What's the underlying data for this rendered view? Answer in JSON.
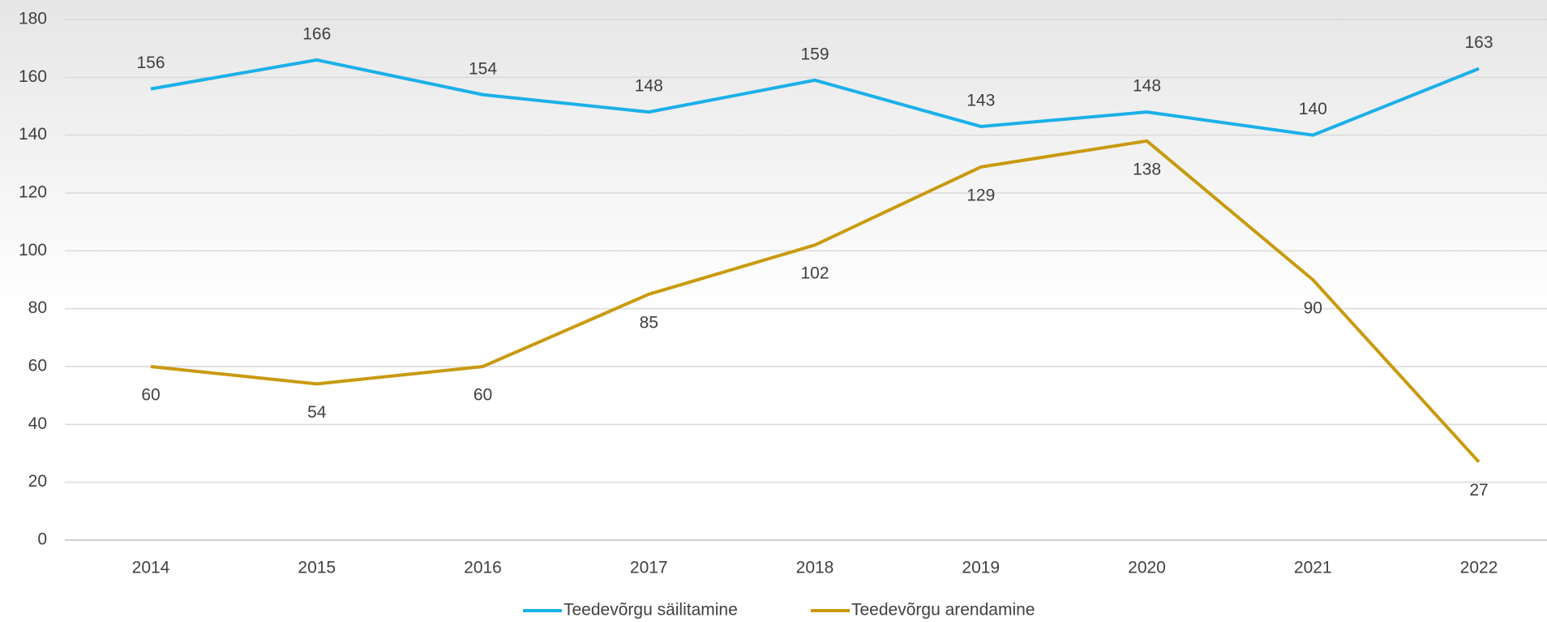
{
  "chart_data": {
    "type": "line",
    "x": [
      2014,
      2015,
      2016,
      2017,
      2018,
      2019,
      2020,
      2021,
      2022
    ],
    "series": [
      {
        "name": "Teedevõrgu säilitamine",
        "color": "#1bb0e8",
        "values": [
          156,
          166,
          154,
          148,
          159,
          143,
          148,
          140,
          163
        ]
      },
      {
        "name": "Teedevõrgu arendamine",
        "color": "#c99a0e",
        "values": [
          60,
          54,
          60,
          85,
          102,
          129,
          138,
          90,
          27
        ]
      }
    ],
    "ylim": [
      0,
      180
    ],
    "yticks": [
      0,
      20,
      40,
      60,
      80,
      100,
      120,
      140,
      160,
      180
    ],
    "grid": true,
    "legend": "bottom"
  }
}
